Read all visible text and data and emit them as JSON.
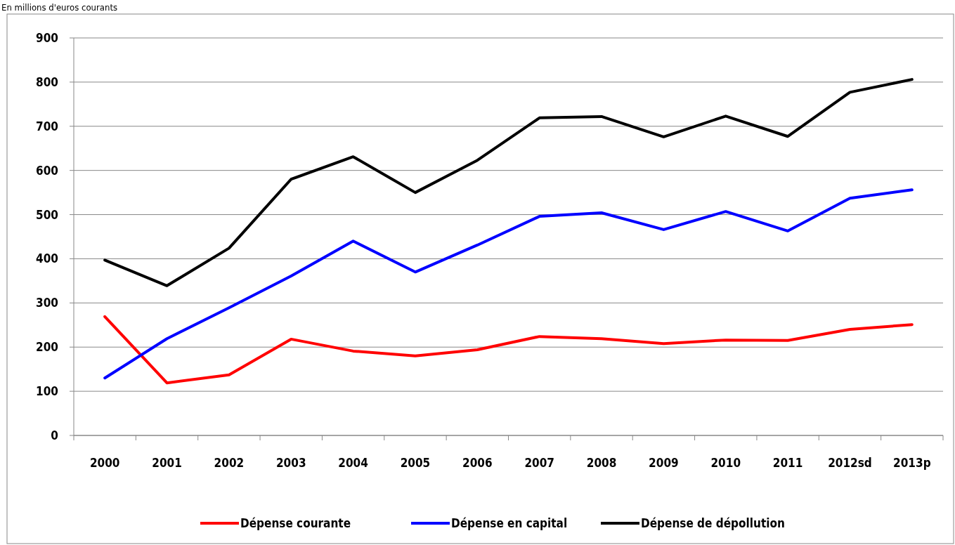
{
  "chart_data": {
    "type": "line",
    "subtitle": "En millions d'euros courants",
    "categories": [
      "2000",
      "2001",
      "2002",
      "2003",
      "2004",
      "2005",
      "2006",
      "2007",
      "2008",
      "2009",
      "2010",
      "2011",
      "2012sd",
      "2013p"
    ],
    "series": [
      {
        "name": "Dépense courante",
        "color": "#ff0000",
        "values": [
          269,
          119,
          137,
          218,
          191,
          180,
          194,
          224,
          219,
          208,
          216,
          215,
          240,
          251
        ]
      },
      {
        "name": "Dépense en capital",
        "color": "#0000ff",
        "values": [
          130,
          219,
          289,
          361,
          440,
          370,
          431,
          496,
          504,
          466,
          507,
          463,
          537,
          556
        ]
      },
      {
        "name": "Dépense de dépollution",
        "color": "#000000",
        "values": [
          397,
          339,
          424,
          580,
          631,
          550,
          623,
          719,
          722,
          676,
          723,
          677,
          777,
          806
        ]
      }
    ],
    "ylim": [
      0,
      900
    ],
    "yticks": [
      0,
      100,
      200,
      300,
      400,
      500,
      600,
      700,
      800,
      900
    ],
    "grid": "y",
    "legend": "bottom",
    "marker": "none",
    "line_style": "solid"
  }
}
